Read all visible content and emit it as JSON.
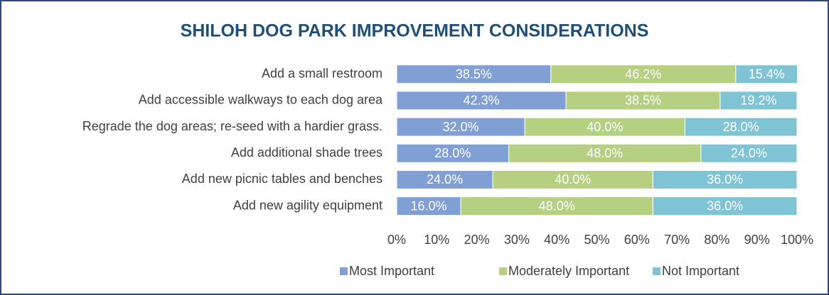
{
  "chart_data": {
    "type": "stacked_bar_horizontal",
    "title": "SHILOH DOG PARK IMPROVEMENT CONSIDERATIONS",
    "categories": [
      "Add a small restroom",
      "Add accessible walkways to each dog area",
      "Regrade the dog areas; re-seed with a hardier grass.",
      "Add additional shade trees",
      "Add new picnic tables and benches",
      "Add new agility equipment"
    ],
    "series": [
      {
        "name": "Most Important",
        "color": "#809fd5",
        "values": [
          38.5,
          42.3,
          32.0,
          28.0,
          24.0,
          16.0
        ],
        "value_labels": [
          "38.5%",
          "42.3%",
          "32.0%",
          "28.0%",
          "24.0%",
          "16.0%"
        ]
      },
      {
        "name": "Moderately Important",
        "color": "#b4d080",
        "values": [
          46.2,
          38.5,
          40.0,
          48.0,
          40.0,
          48.0
        ],
        "value_labels": [
          "46.2%",
          "38.5%",
          "40.0%",
          "48.0%",
          "40.0%",
          "48.0%"
        ]
      },
      {
        "name": "Not Important",
        "color": "#7fc4d5",
        "values": [
          15.4,
          19.2,
          28.0,
          24.0,
          36.0,
          36.0
        ],
        "value_labels": [
          "15.4%",
          "19.2%",
          "28.0%",
          "24.0%",
          "36.0%",
          "36.0%"
        ]
      }
    ],
    "xlim": [
      0,
      100
    ],
    "xticks": [
      {
        "value": 0,
        "label": "0%"
      },
      {
        "value": 10,
        "label": "10%"
      },
      {
        "value": 20,
        "label": "20%"
      },
      {
        "value": 30,
        "label": "30%"
      },
      {
        "value": 40,
        "label": "40%"
      },
      {
        "value": 50,
        "label": "50%"
      },
      {
        "value": 60,
        "label": "60%"
      },
      {
        "value": 70,
        "label": "70%"
      },
      {
        "value": 80,
        "label": "80%"
      },
      {
        "value": 90,
        "label": "90%"
      },
      {
        "value": 100,
        "label": "100%"
      }
    ],
    "legend": "bottom"
  }
}
